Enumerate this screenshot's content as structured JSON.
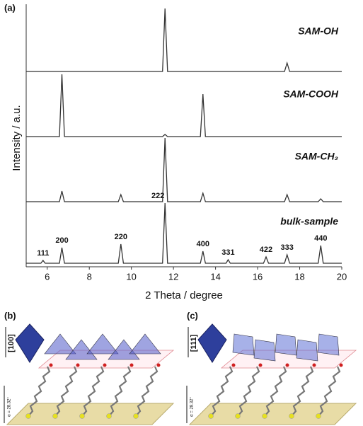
{
  "chart_data": {
    "type": "line",
    "panel_label": "(a)",
    "xlabel": "2 Theta / degree",
    "ylabel": "Intensity / a.u.",
    "xlim": [
      5,
      20
    ],
    "xticks": [
      6,
      8,
      10,
      12,
      14,
      16,
      18,
      20
    ],
    "ylim": [
      0,
      100
    ],
    "series": [
      {
        "name": "SAM-OH",
        "color": "#333333",
        "x": [
          5,
          11.48,
          11.6,
          11.72,
          17.28,
          17.4,
          17.52,
          20
        ],
        "values": [
          0,
          0,
          89,
          0,
          0,
          12,
          0,
          0
        ]
      },
      {
        "name": "SAM-COOH",
        "color": "#333333",
        "x": [
          5,
          6.58,
          6.7,
          6.82,
          11.48,
          11.6,
          11.72,
          13.28,
          13.4,
          13.52,
          20
        ],
        "values": [
          0,
          0,
          88,
          0,
          0,
          3,
          0,
          0,
          60,
          0,
          0
        ]
      },
      {
        "name": "SAM-CH₃",
        "color": "#333333",
        "x": [
          5,
          6.58,
          6.7,
          6.82,
          9.38,
          9.5,
          9.62,
          11.48,
          11.6,
          11.72,
          13.28,
          13.4,
          13.52,
          17.28,
          17.4,
          17.52,
          18.88,
          19.0,
          19.12,
          20
        ],
        "values": [
          0,
          0,
          15,
          0,
          0,
          10,
          0,
          0,
          90,
          0,
          0,
          12,
          0,
          0,
          10,
          0,
          0,
          4,
          0,
          0
        ]
      },
      {
        "name": "bulk-sample",
        "color": "#333333",
        "x": [
          5,
          5.7,
          5.8,
          5.9,
          6.58,
          6.7,
          6.82,
          9.38,
          9.5,
          9.62,
          11.48,
          11.6,
          11.72,
          13.28,
          13.4,
          13.52,
          14.5,
          14.6,
          14.7,
          16.28,
          16.4,
          16.52,
          17.28,
          17.4,
          17.52,
          18.88,
          19.0,
          19.12,
          20
        ],
        "values": [
          0,
          0,
          4,
          0,
          0,
          22,
          0,
          0,
          27,
          0,
          0,
          85,
          0,
          0,
          17,
          0,
          0,
          5,
          0,
          0,
          9,
          0,
          0,
          12,
          0,
          0,
          25,
          0,
          0
        ]
      }
    ],
    "peak_labels": [
      "111",
      "200",
      "220",
      "222",
      "400",
      "331",
      "422",
      "333",
      "440"
    ]
  },
  "panels": [
    {
      "label": "(b)",
      "direction": "[100]",
      "angle": "α = 28.32°"
    },
    {
      "label": "(c)",
      "direction": "[111]",
      "angle": "α = 28.32°"
    }
  ]
}
